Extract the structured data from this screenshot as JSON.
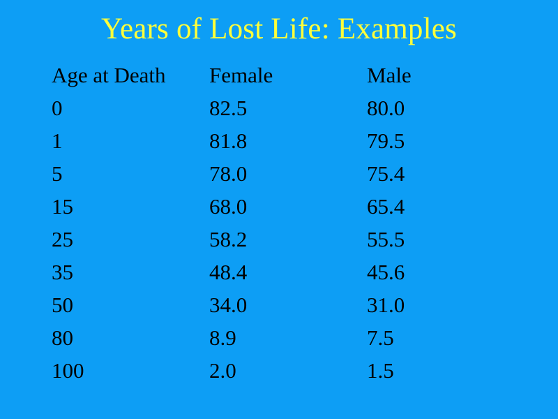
{
  "title": "Years of Lost Life: Examples",
  "table": {
    "headers": [
      "Age at Death",
      "Female",
      "Male"
    ],
    "rows": [
      [
        "0",
        "82.5",
        "80.0"
      ],
      [
        "1",
        "81.8",
        "79.5"
      ],
      [
        "5",
        "78.0",
        "75.4"
      ],
      [
        "15",
        "68.0",
        "65.4"
      ],
      [
        "25",
        "58.2",
        "55.5"
      ],
      [
        "35",
        "48.4",
        "45.6"
      ],
      [
        "50",
        "34.0",
        "31.0"
      ],
      [
        "80",
        "8.9",
        "7.5"
      ],
      [
        "100",
        "2.0",
        "1.5"
      ]
    ]
  },
  "colors": {
    "background": "#0d9ef5",
    "title": "#ffff3a",
    "text": "#000000"
  }
}
